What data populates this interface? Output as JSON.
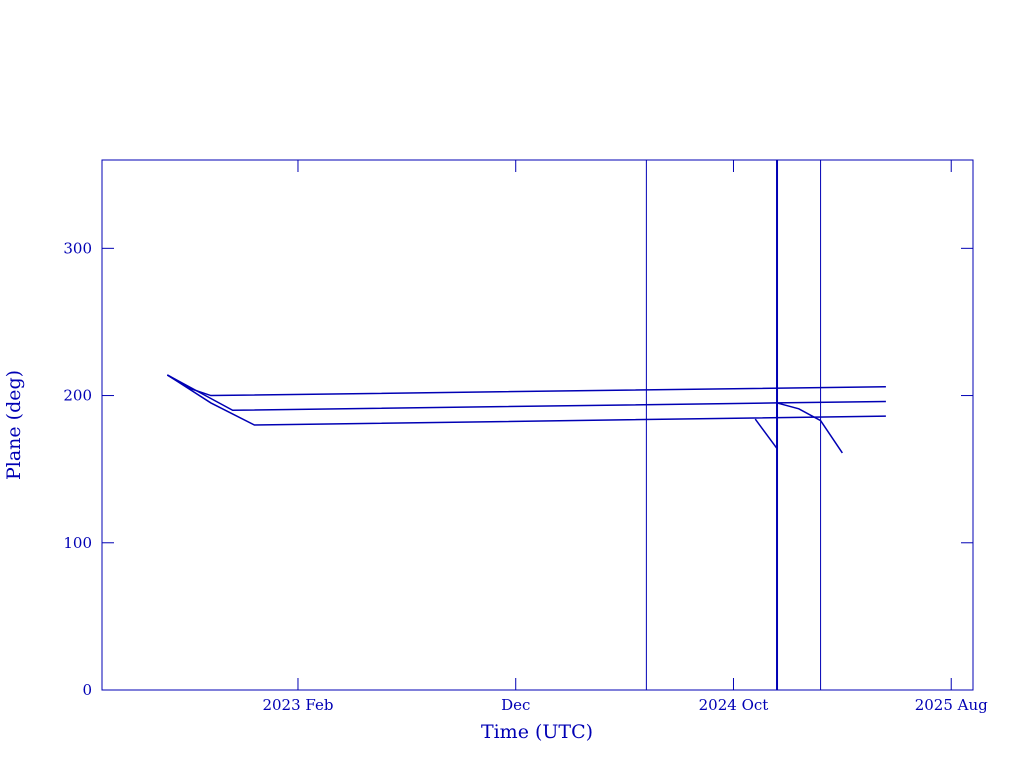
{
  "chart_data": {
    "type": "line",
    "x_label": "Time (UTC)",
    "y_label": "Plane (deg)",
    "xlim": [
      "2022-05",
      "2025-09"
    ],
    "xticks": [
      {
        "value": "2023-02",
        "label": "2023 Feb"
      },
      {
        "value": "2023-12",
        "label": "Dec"
      },
      {
        "value": "2024-10",
        "label": "2024 Oct"
      },
      {
        "value": "2025-08",
        "label": "2025 Aug"
      }
    ],
    "ylim": [
      0,
      360
    ],
    "yticks": [
      0,
      100,
      200,
      300
    ],
    "color": "#0000b4",
    "series": [
      {
        "x": [
          "2022-08",
          "2022-09",
          "2022-10",
          "2025-05"
        ],
        "values": [
          214,
          205,
          200,
          206
        ]
      },
      {
        "x": [
          "2022-08",
          "2022-10",
          "2022-11",
          "2024-12",
          "2025-05"
        ],
        "values": [
          214,
          198,
          190,
          195,
          196
        ]
      },
      {
        "x": [
          "2024-12",
          "2025-01",
          "2025-02",
          "2025-03"
        ],
        "values": [
          195,
          191,
          183,
          161
        ]
      },
      {
        "x": [
          "2022-08",
          "2022-10",
          "2022-12",
          "2025-05"
        ],
        "values": [
          214,
          195,
          180,
          186
        ]
      },
      {
        "x": [
          "2024-11",
          "2024-12"
        ],
        "values": [
          184,
          164
        ]
      }
    ],
    "vlines": [
      {
        "x": "2024-06",
        "width": 1
      },
      {
        "x": "2024-12",
        "width": 2
      },
      {
        "x": "2025-02",
        "width": 1
      }
    ]
  }
}
